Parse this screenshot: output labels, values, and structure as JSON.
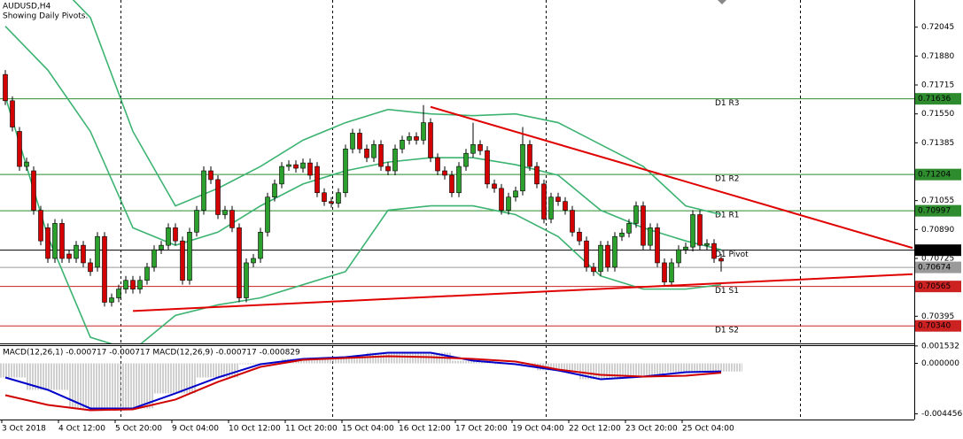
{
  "header": {
    "symbol": "AUDUSD,H4",
    "note": "Showing Daily Pivots."
  },
  "chart_data": [
    {
      "type": "candlestick",
      "categories": [
        "3 Oct 2018",
        null,
        null,
        null,
        null,
        null,
        null,
        null,
        "4 Oct 12:00",
        null,
        null,
        null,
        null,
        null,
        null,
        null,
        "5 Oct 20:00",
        null,
        null,
        null,
        null,
        null,
        null,
        null,
        "9 Oct 04:00",
        null,
        null,
        null,
        null,
        null,
        null,
        null,
        "10 Oct 12:00",
        null,
        null,
        null,
        null,
        null,
        null,
        null,
        "11 Oct 20:00",
        null,
        null,
        null,
        null,
        null,
        null,
        null,
        "15 Oct 04:00",
        null,
        null,
        null,
        null,
        null,
        null,
        null,
        "16 Oct 12:00",
        null,
        null,
        null,
        null,
        null,
        null,
        null,
        "17 Oct 20:00",
        null,
        null,
        null,
        null,
        null,
        null,
        null,
        "19 Oct 04:00",
        null,
        null,
        null,
        null,
        null,
        null,
        null,
        "22 Oct 12:00",
        null,
        null,
        null,
        null,
        null,
        null,
        null,
        "23 Oct 20:00",
        null,
        null,
        null,
        null,
        null,
        null,
        null,
        "25 Oct 04:00",
        null,
        null,
        null,
        null,
        null
      ],
      "open": [
        0.71775,
        0.71625,
        0.7145,
        0.7125,
        0.71225,
        0.71,
        0.709,
        0.70725,
        0.70925,
        0.7075,
        0.70725,
        0.708,
        0.707,
        0.70675,
        0.7085,
        0.70475,
        0.705,
        0.7055,
        0.706,
        0.7055,
        0.706,
        0.70675,
        0.70775,
        0.708,
        0.709,
        0.70825,
        0.706,
        0.70875,
        0.71,
        0.71225,
        0.71175,
        0.70975,
        0.71,
        0.709,
        0.705,
        0.707,
        0.70725,
        0.70875,
        0.71075,
        0.7115,
        0.7125,
        0.7126,
        0.7124,
        0.7127,
        0.7125,
        0.711,
        0.7105,
        0.7104,
        0.711,
        0.7135,
        0.7144,
        0.7135,
        0.713,
        0.71375,
        0.7125,
        0.71225,
        0.7135,
        0.714,
        0.7142,
        0.714,
        0.715,
        0.713,
        0.71225,
        0.712,
        0.711,
        0.7125,
        0.71325,
        0.71375,
        0.7134,
        0.7115,
        0.71125,
        0.71,
        0.71075,
        0.7111,
        0.71375,
        0.7125,
        0.7115,
        0.7095,
        0.71075,
        0.7105,
        0.71,
        0.70875,
        0.70825,
        0.70675,
        0.7065,
        0.708,
        0.70675,
        0.7085,
        0.7087,
        0.70925,
        0.71025,
        0.708,
        0.709,
        0.707,
        0.7059,
        0.707,
        0.70775,
        0.7079,
        0.70975,
        0.708,
        0.7081,
        0.70725
      ],
      "high": [
        0.718,
        0.7165,
        0.71475,
        0.713,
        0.7125,
        0.71025,
        0.70925,
        0.7095,
        0.7095,
        0.70775,
        0.70825,
        0.70825,
        0.70725,
        0.70875,
        0.70875,
        0.70525,
        0.70575,
        0.70625,
        0.70625,
        0.70625,
        0.707,
        0.708,
        0.70825,
        0.70925,
        0.70925,
        0.7085,
        0.709,
        0.71025,
        0.7125,
        0.7125,
        0.712,
        0.71025,
        0.71025,
        0.70925,
        0.70725,
        0.7075,
        0.709,
        0.711,
        0.71175,
        0.71275,
        0.71285,
        0.71285,
        0.71295,
        0.71295,
        0.71275,
        0.71125,
        0.71075,
        0.71125,
        0.71375,
        0.71465,
        0.71465,
        0.71375,
        0.714,
        0.714,
        0.71275,
        0.71375,
        0.71425,
        0.71445,
        0.71445,
        0.716,
        0.71525,
        0.71325,
        0.7125,
        0.71225,
        0.71275,
        0.7135,
        0.715,
        0.714,
        0.71365,
        0.71175,
        0.7115,
        0.711,
        0.71135,
        0.71475,
        0.714,
        0.71275,
        0.71175,
        0.711,
        0.711,
        0.71075,
        0.71025,
        0.709,
        0.7085,
        0.707,
        0.70825,
        0.70825,
        0.70875,
        0.70895,
        0.7095,
        0.7105,
        0.7105,
        0.70925,
        0.70925,
        0.70725,
        0.70725,
        0.708,
        0.70815,
        0.71,
        0.71,
        0.70835,
        0.70835,
        0.7075
      ],
      "low": [
        0.716,
        0.7145,
        0.71225,
        0.71225,
        0.70975,
        0.708,
        0.707,
        0.707,
        0.707,
        0.707,
        0.707,
        0.70675,
        0.70625,
        0.7065,
        0.7045,
        0.7045,
        0.70475,
        0.70525,
        0.70525,
        0.70525,
        0.70575,
        0.7065,
        0.7075,
        0.70775,
        0.708,
        0.70575,
        0.70575,
        0.7085,
        0.70975,
        0.7115,
        0.7095,
        0.7095,
        0.70875,
        0.70475,
        0.70475,
        0.70675,
        0.707,
        0.7085,
        0.7105,
        0.71125,
        0.71225,
        0.71215,
        0.71215,
        0.71175,
        0.71075,
        0.71025,
        0.71015,
        0.71015,
        0.71075,
        0.71325,
        0.71325,
        0.71275,
        0.71275,
        0.71225,
        0.712,
        0.712,
        0.71325,
        0.71375,
        0.71375,
        0.71375,
        0.71275,
        0.712,
        0.71175,
        0.71075,
        0.71075,
        0.71225,
        0.713,
        0.71315,
        0.71125,
        0.711,
        0.70975,
        0.70975,
        0.7105,
        0.71085,
        0.71225,
        0.71125,
        0.70925,
        0.70925,
        0.71025,
        0.70975,
        0.7085,
        0.708,
        0.7065,
        0.70625,
        0.70625,
        0.7065,
        0.7065,
        0.70825,
        0.70845,
        0.709,
        0.70775,
        0.70775,
        0.70675,
        0.70565,
        0.70565,
        0.70675,
        0.7075,
        0.70765,
        0.70775,
        0.70775,
        0.707,
        0.7065
      ],
      "close": [
        0.71625,
        0.71475,
        0.7125,
        0.71275,
        0.71,
        0.70825,
        0.70725,
        0.70925,
        0.70725,
        0.70725,
        0.708,
        0.707,
        0.7065,
        0.7085,
        0.70475,
        0.705,
        0.7055,
        0.706,
        0.7055,
        0.706,
        0.70675,
        0.70775,
        0.708,
        0.709,
        0.70825,
        0.706,
        0.70875,
        0.71,
        0.71225,
        0.71175,
        0.70975,
        0.71,
        0.709,
        0.705,
        0.707,
        0.70725,
        0.70875,
        0.71075,
        0.7115,
        0.7125,
        0.7126,
        0.7124,
        0.7127,
        0.712,
        0.711,
        0.7105,
        0.7104,
        0.711,
        0.7135,
        0.7144,
        0.7135,
        0.713,
        0.71375,
        0.7125,
        0.71225,
        0.7135,
        0.714,
        0.7142,
        0.714,
        0.715,
        0.713,
        0.71225,
        0.712,
        0.711,
        0.7125,
        0.71325,
        0.71375,
        0.7134,
        0.7115,
        0.71125,
        0.71,
        0.71075,
        0.7111,
        0.71375,
        0.7125,
        0.7115,
        0.7095,
        0.71075,
        0.7105,
        0.71,
        0.70875,
        0.70825,
        0.70675,
        0.7065,
        0.708,
        0.70675,
        0.7085,
        0.7087,
        0.70925,
        0.71025,
        0.708,
        0.709,
        0.707,
        0.7059,
        0.707,
        0.70775,
        0.7079,
        0.70975,
        0.708,
        0.7081,
        0.70725,
        0.7071
      ],
      "up_color": "#2ca02c",
      "down_color": "#d40000",
      "bands": {
        "color": "#3cb371",
        "index": [
          0,
          6,
          12,
          18,
          24,
          30,
          36,
          42,
          48,
          54,
          60,
          66,
          72,
          78,
          84,
          90,
          96,
          101
        ],
        "upper": [
          0.726,
          0.7235,
          0.721,
          0.7145,
          0.71025,
          0.71125,
          0.7125,
          0.714,
          0.715,
          0.71575,
          0.7155,
          0.7154,
          0.7155,
          0.715,
          0.71375,
          0.7125,
          0.71025,
          0.70975
        ],
        "middle": [
          0.7205,
          0.718,
          0.7145,
          0.709,
          0.708,
          0.70875,
          0.71025,
          0.7115,
          0.71225,
          0.71275,
          0.713,
          0.713,
          0.7126,
          0.712,
          0.71,
          0.709,
          0.70825,
          0.70775
        ],
        "lower": [
          0.7165,
          0.7085,
          0.70275,
          0.702,
          0.704,
          0.7046,
          0.705,
          0.70575,
          0.7065,
          0.71,
          0.71025,
          0.71025,
          0.70975,
          0.7085,
          0.70625,
          0.7055,
          0.7055,
          0.70575
        ]
      },
      "trendlines": [
        {
          "color": "#e00000",
          "x": [
            60,
            128
          ],
          "values": [
            0.7159,
            0.70785
          ]
        },
        {
          "color": "#e00000",
          "x": [
            18,
            128
          ],
          "values": [
            0.70425,
            0.70635
          ]
        }
      ],
      "pivots": [
        {
          "name": "D1 R3",
          "value": 0.71636,
          "color": "#2e8b2e"
        },
        {
          "name": "D1 R2",
          "value": 0.71204,
          "color": "#2e8b2e"
        },
        {
          "name": "D1 R1",
          "value": 0.70997,
          "color": "#2e8b2e"
        },
        {
          "name": "D1 Pivot",
          "value": 0.70772,
          "color": "#000000"
        },
        {
          "name": "D1 S1",
          "value": 0.70565,
          "color": "#cc2222"
        },
        {
          "name": "D1 S2",
          "value": 0.7034,
          "value_label": "0.70340",
          "color": "#cc2222"
        }
      ],
      "current_price": {
        "value": 0.70674,
        "color": "#9a9a9a"
      },
      "ylim": [
        0.7024,
        0.722
      ],
      "yticks": [
        0.72045,
        {
          "value": 0.7188,
          "label": "0.71880"
        },
        0.71715,
        {
          "value": 0.7155,
          "label": "0.71550"
        },
        0.71385,
        0.71055,
        {
          "value": 0.7089,
          "label": "0.70890"
        },
        0.70725,
        0.70395
      ]
    },
    {
      "type": "macd",
      "title": "MACD(12,26,1) -0.000717 -0.000717 MACD(12,26,9) -0.000717 -0.000829",
      "x": [
        0,
        6,
        12,
        18,
        24,
        30,
        36,
        42,
        48,
        54,
        60,
        66,
        72,
        78,
        84,
        90,
        96,
        101
      ],
      "histogram_color": "#a0a0a0",
      "series": [
        {
          "color": "#0000c8",
          "values": [
            -0.001248,
            -0.00234,
            -0.003978,
            -0.003978,
            -0.002652,
            -0.001248,
            -7.8e-05,
            0.00039,
            0.000546,
            0.000936,
            0.000936,
            0.000234,
            -7.8e-05,
            -0.000624,
            -0.001404,
            -0.00117,
            -0.00078,
            -0.000717
          ]
        },
        {
          "color": "#d00000",
          "values": [
            -0.002808,
            -0.003666,
            -0.004134,
            -0.004056,
            -0.003198,
            -0.001638,
            -0.000312,
            0.000312,
            0.000468,
            0.000624,
            0.000546,
            0.00039,
            0.000156,
            -0.000546,
            -0.001014,
            -0.00117,
            -0.001092,
            -0.000829
          ]
        }
      ],
      "ylim": [
        -0.0048,
        0.0016
      ],
      "yticks": [
        0.001532,
        {
          "value": 0,
          "label": "0.000000"
        },
        -0.004456
      ]
    }
  ]
}
